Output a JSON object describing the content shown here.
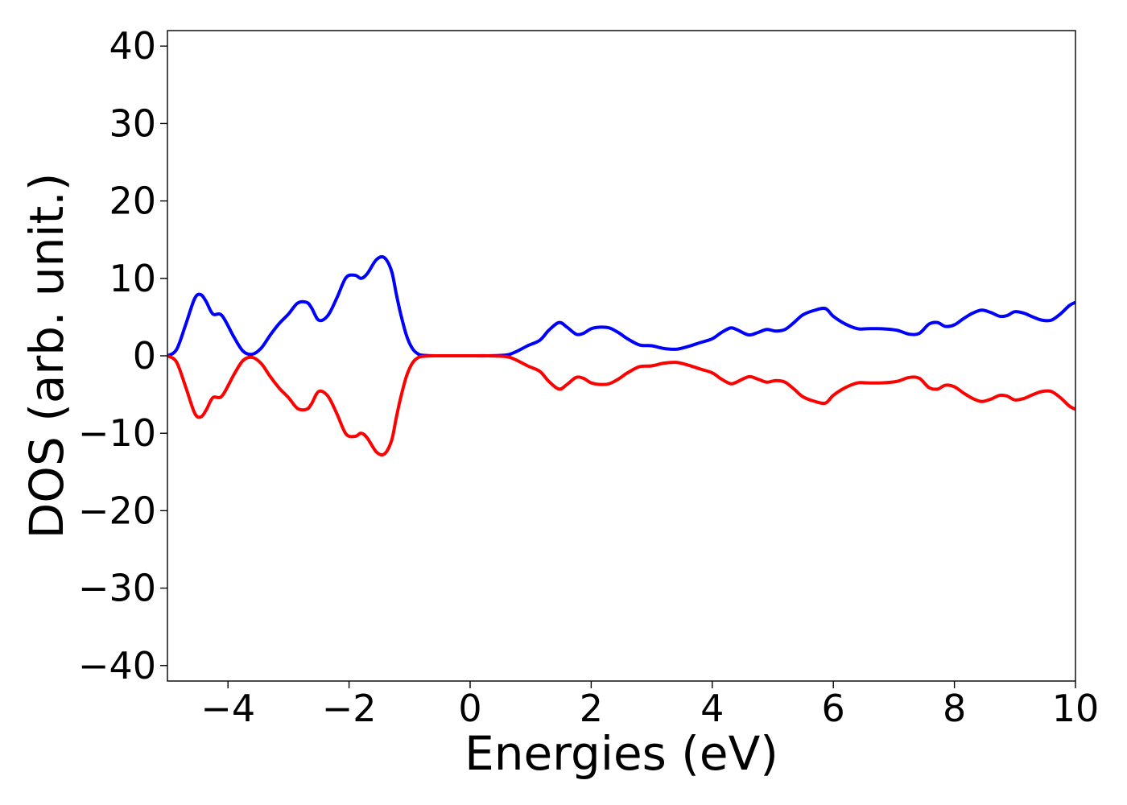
{
  "chart_data": {
    "type": "line",
    "title": "",
    "xlabel": "Energies (eV)",
    "ylabel": "DOS (arb. unit.)",
    "xlim": [
      -5,
      10
    ],
    "ylim": [
      -42,
      42
    ],
    "x_ticks": [
      -4,
      -2,
      0,
      2,
      4,
      6,
      8,
      10
    ],
    "x_tick_labels": [
      "−4",
      "−2",
      "0",
      "2",
      "4",
      "6",
      "8",
      "10"
    ],
    "y_ticks": [
      40,
      30,
      20,
      10,
      0,
      -10,
      -20,
      -30,
      -40
    ],
    "y_tick_labels": [
      "40",
      "30",
      "20",
      "10",
      "0",
      "−10",
      "−20",
      "−30",
      "−40"
    ],
    "grid": false,
    "legend": "none",
    "series": [
      {
        "color": "#0000ff",
        "x": [
          -5,
          -4.85,
          -4.7,
          -4.55,
          -4.45,
          -4.36,
          -4.25,
          -4.1,
          -3.9,
          -3.75,
          -3.6,
          -3.45,
          -3.3,
          -3.15,
          -3.0,
          -2.85,
          -2.7,
          -2.62,
          -2.5,
          -2.35,
          -2.2,
          -2.05,
          -1.9,
          -1.8,
          -1.7,
          -1.55,
          -1.42,
          -1.3,
          -1.22,
          -1.15,
          -1.05,
          -0.95,
          -0.85,
          -0.75,
          -0.6,
          -0.45,
          -0.2,
          0.0,
          0.3,
          0.6,
          0.75,
          0.95,
          1.15,
          1.3,
          1.47,
          1.6,
          1.75,
          1.87,
          2.0,
          2.15,
          2.3,
          2.45,
          2.6,
          2.8,
          3.0,
          3.2,
          3.4,
          3.6,
          3.8,
          4.0,
          4.15,
          4.3,
          4.4,
          4.6,
          4.75,
          4.9,
          5.05,
          5.2,
          5.35,
          5.5,
          5.7,
          5.87,
          6.0,
          6.2,
          6.4,
          6.55,
          6.8,
          7.05,
          7.25,
          7.42,
          7.58,
          7.72,
          7.85,
          8.0,
          8.15,
          8.3,
          8.45,
          8.6,
          8.75,
          8.87,
          9.0,
          9.15,
          9.3,
          9.45,
          9.6,
          9.75,
          9.9,
          10.0
        ],
        "y": [
          0,
          0.8,
          4.0,
          7.4,
          7.9,
          7.0,
          5.4,
          5.2,
          2.4,
          0.6,
          0.2,
          1.0,
          2.7,
          4.2,
          5.4,
          6.8,
          6.9,
          6.2,
          4.6,
          5.2,
          7.5,
          10.1,
          10.4,
          10.0,
          10.6,
          12.4,
          12.7,
          11.0,
          8.0,
          5.5,
          2.6,
          0.9,
          0.2,
          0.05,
          0,
          0,
          0,
          0,
          0,
          0.1,
          0.5,
          1.3,
          2.0,
          3.3,
          4.3,
          3.7,
          2.8,
          2.9,
          3.5,
          3.7,
          3.6,
          3.0,
          2.2,
          1.4,
          1.3,
          0.95,
          0.85,
          1.2,
          1.7,
          2.2,
          3.0,
          3.6,
          3.4,
          2.7,
          3.0,
          3.4,
          3.2,
          3.4,
          4.3,
          5.3,
          5.9,
          6.1,
          5.1,
          4.1,
          3.5,
          3.5,
          3.5,
          3.3,
          2.8,
          2.9,
          4.1,
          4.3,
          3.8,
          4.0,
          4.8,
          5.5,
          5.9,
          5.6,
          5.1,
          5.2,
          5.7,
          5.5,
          5.0,
          4.6,
          4.6,
          5.4,
          6.5,
          6.9
        ]
      },
      {
        "color": "#ff0000",
        "x": [
          -5,
          -4.85,
          -4.7,
          -4.55,
          -4.45,
          -4.36,
          -4.25,
          -4.1,
          -3.9,
          -3.75,
          -3.6,
          -3.45,
          -3.3,
          -3.15,
          -3.0,
          -2.85,
          -2.7,
          -2.62,
          -2.5,
          -2.35,
          -2.2,
          -2.05,
          -1.9,
          -1.8,
          -1.7,
          -1.55,
          -1.42,
          -1.3,
          -1.22,
          -1.15,
          -1.05,
          -0.95,
          -0.85,
          -0.75,
          -0.6,
          -0.45,
          -0.2,
          0.0,
          0.3,
          0.6,
          0.75,
          0.95,
          1.15,
          1.3,
          1.47,
          1.6,
          1.75,
          1.87,
          2.0,
          2.15,
          2.3,
          2.45,
          2.6,
          2.8,
          3.0,
          3.2,
          3.4,
          3.6,
          3.8,
          4.0,
          4.15,
          4.3,
          4.4,
          4.6,
          4.75,
          4.9,
          5.05,
          5.2,
          5.35,
          5.5,
          5.7,
          5.87,
          6.0,
          6.2,
          6.4,
          6.55,
          6.8,
          7.05,
          7.25,
          7.42,
          7.58,
          7.72,
          7.85,
          8.0,
          8.15,
          8.3,
          8.45,
          8.6,
          8.75,
          8.87,
          9.0,
          9.15,
          9.3,
          9.45,
          9.6,
          9.75,
          9.9,
          10.0
        ],
        "y": [
          0,
          -0.8,
          -4.0,
          -7.4,
          -7.9,
          -7.0,
          -5.4,
          -5.2,
          -2.4,
          -0.6,
          -0.2,
          -1.0,
          -2.7,
          -4.2,
          -5.4,
          -6.8,
          -6.9,
          -6.2,
          -4.6,
          -5.2,
          -7.5,
          -10.1,
          -10.4,
          -10.0,
          -10.6,
          -12.4,
          -12.7,
          -11.0,
          -8.0,
          -5.5,
          -2.6,
          -0.9,
          -0.2,
          -0.05,
          0,
          0,
          0,
          0,
          0,
          -0.1,
          -0.5,
          -1.3,
          -2.0,
          -3.3,
          -4.3,
          -3.7,
          -2.8,
          -2.9,
          -3.5,
          -3.7,
          -3.6,
          -3.0,
          -2.2,
          -1.4,
          -1.3,
          -0.95,
          -0.85,
          -1.2,
          -1.7,
          -2.2,
          -3.0,
          -3.6,
          -3.4,
          -2.7,
          -3.0,
          -3.4,
          -3.2,
          -3.4,
          -4.3,
          -5.3,
          -5.9,
          -6.1,
          -5.1,
          -4.1,
          -3.5,
          -3.5,
          -3.5,
          -3.3,
          -2.8,
          -2.9,
          -4.1,
          -4.3,
          -3.8,
          -4.0,
          -4.8,
          -5.5,
          -5.9,
          -5.6,
          -5.1,
          -5.2,
          -5.7,
          -5.5,
          -5.0,
          -4.6,
          -4.6,
          -5.4,
          -6.5,
          -6.9
        ]
      }
    ]
  }
}
